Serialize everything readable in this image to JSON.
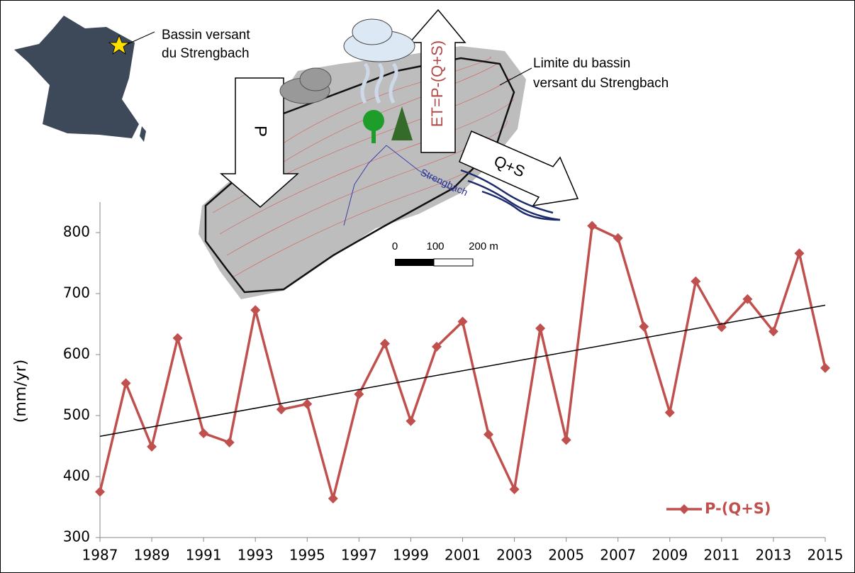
{
  "chart_data": {
    "type": "line",
    "y_label": "(mm/yr)",
    "x": [
      1987,
      1988,
      1989,
      1990,
      1991,
      1992,
      1993,
      1994,
      1995,
      1996,
      1997,
      1998,
      1999,
      2000,
      2001,
      2002,
      2003,
      2004,
      2005,
      2006,
      2007,
      2008,
      2009,
      2010,
      2011,
      2012,
      2013,
      2014,
      2015
    ],
    "series": [
      {
        "name": "P-(Q+S)",
        "color": "#c0504d",
        "values": [
          375,
          553,
          449,
          627,
          471,
          456,
          673,
          510,
          519,
          364,
          535,
          618,
          491,
          613,
          654,
          469,
          379,
          643,
          460,
          811,
          791,
          646,
          505,
          720,
          645,
          691,
          638,
          766,
          578
        ]
      }
    ],
    "trendline": {
      "x": [
        1987,
        2015
      ],
      "values": [
        466,
        681
      ],
      "color": "#000000"
    },
    "xlim": [
      1987,
      2015
    ],
    "xticks": [
      1987,
      1989,
      1991,
      1993,
      1995,
      1997,
      1999,
      2001,
      2003,
      2005,
      2007,
      2009,
      2011,
      2013,
      2015
    ],
    "ylim": [
      300,
      850
    ],
    "yticks": [
      300,
      400,
      500,
      600,
      700,
      800
    ],
    "grid": false,
    "legend": "lower right",
    "annotations": [
      "Bassin versant",
      "du Strengbach",
      "Limite du bassin",
      "versant du Strengbach",
      "P",
      "ET=P-(Q+S)",
      "Q+S",
      "Strengbach",
      "0",
      "100",
      "200 m"
    ]
  }
}
